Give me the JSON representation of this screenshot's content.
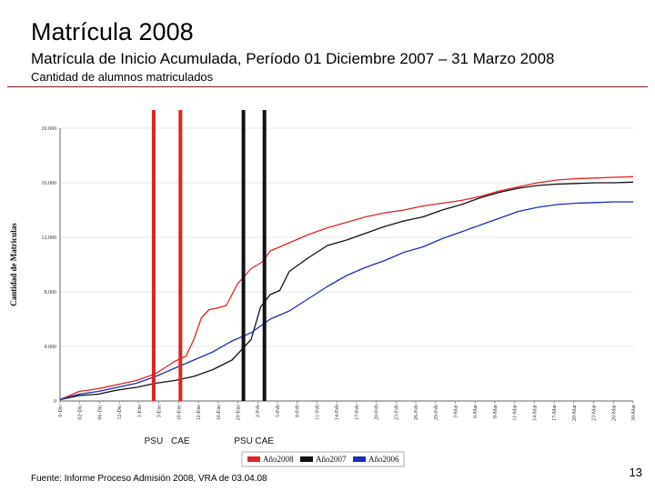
{
  "slide": {
    "title": "Matrícula 2008",
    "subtitle": "Matrícula de Inicio Acumulada, Período 01 Diciembre 2007 – 31 Marzo 2008",
    "description": "Cantidad de alumnos matriculados",
    "footer": "Fuente: Informe Proceso Admisión 2008, VRA de 03.04.08",
    "page_number": "13"
  },
  "chart_data": {
    "type": "line",
    "title": "",
    "xlabel": "",
    "ylabel": "Cantidad de Matriculas",
    "ylim": [
      0,
      20000
    ],
    "yticks": [
      "0",
      "4.000",
      "8.000",
      "12.000",
      "16.000",
      "20.000"
    ],
    "ytick_values": [
      0,
      4000,
      8000,
      12000,
      16000,
      20000
    ],
    "xlim": [
      0,
      30
    ],
    "xticks": [
      "0-Dic",
      "02-Dic",
      "06-Dic",
      "12-Dic",
      "1-Ene",
      "3-Ene",
      "10-Ene",
      "12-Ene",
      "16-Ene",
      "20-Ene",
      "2-Feb",
      "5-Feb",
      "8-Feb",
      "11-Feb",
      "14-Feb",
      "17-Feb",
      "20-Feb",
      "23-Feb",
      "26-Feb",
      "29-Feb",
      "3-Mar",
      "6-Mar",
      "8-Mar",
      "11-Mar",
      "14-Mar",
      "17-Mar",
      "20-Mar",
      "23-Mar",
      "26-Mar",
      "30-Mar"
    ],
    "series": [
      {
        "name": "Año2008",
        "color": "#e02424",
        "x": [
          0,
          1,
          2,
          3,
          4,
          5,
          6,
          6.6,
          7,
          7.4,
          7.8,
          8.2,
          8.7,
          9.3,
          10,
          10.6,
          11,
          12,
          13,
          14,
          15,
          16,
          17,
          18,
          19,
          20,
          21,
          22,
          23,
          24,
          25,
          26,
          27,
          28,
          29,
          30
        ],
        "values": [
          100,
          700,
          900,
          1200,
          1500,
          2000,
          2900,
          3300,
          4500,
          6100,
          6700,
          6800,
          7000,
          8600,
          9700,
          10200,
          11000,
          11600,
          12200,
          12700,
          13100,
          13500,
          13800,
          14000,
          14300,
          14500,
          14700,
          15000,
          15400,
          15700,
          16000,
          16200,
          16300,
          16350,
          16400,
          16450
        ]
      },
      {
        "name": "Año2007",
        "color": "#111111",
        "x": [
          0,
          1,
          2,
          3,
          4,
          5,
          6,
          7,
          8,
          9,
          10,
          10.5,
          11,
          11.5,
          12,
          13,
          14,
          15,
          16,
          17,
          18,
          19,
          20,
          21,
          22,
          23,
          24,
          25,
          26,
          27,
          28,
          29,
          30
        ],
        "values": [
          100,
          400,
          500,
          800,
          1000,
          1300,
          1500,
          1800,
          2300,
          3000,
          4500,
          6900,
          7800,
          8100,
          9500,
          10500,
          11400,
          11800,
          12300,
          12800,
          13200,
          13500,
          14000,
          14400,
          14900,
          15300,
          15600,
          15800,
          15900,
          15950,
          16000,
          16000,
          16050
        ]
      },
      {
        "name": "Año2006",
        "color": "#1c2fb8",
        "x": [
          0,
          1,
          2,
          3,
          4,
          5,
          6,
          7,
          8,
          9,
          10,
          11,
          12,
          13,
          14,
          15,
          16,
          17,
          18,
          19,
          20,
          21,
          22,
          23,
          24,
          25,
          26,
          27,
          28,
          29,
          30
        ],
        "values": [
          100,
          500,
          700,
          1000,
          1300,
          1800,
          2400,
          3000,
          3600,
          4400,
          5000,
          6000,
          6600,
          7500,
          8400,
          9200,
          9800,
          10300,
          10900,
          11300,
          11900,
          12400,
          12900,
          13400,
          13900,
          14200,
          14400,
          14500,
          14550,
          14600,
          14600
        ]
      }
    ],
    "markers": [
      {
        "label": "PSU",
        "x": 4.9,
        "color": "#e02424"
      },
      {
        "label": "CAE",
        "x": 6.3,
        "color": "#e02424"
      },
      {
        "label": "PSU",
        "x": 9.6,
        "color": "#111111"
      },
      {
        "label": "CAE",
        "x": 10.7,
        "color": "#111111"
      }
    ],
    "legend": {
      "position": "bottom",
      "entries": [
        "Año2008",
        "Año2007",
        "Año2006"
      ]
    }
  }
}
